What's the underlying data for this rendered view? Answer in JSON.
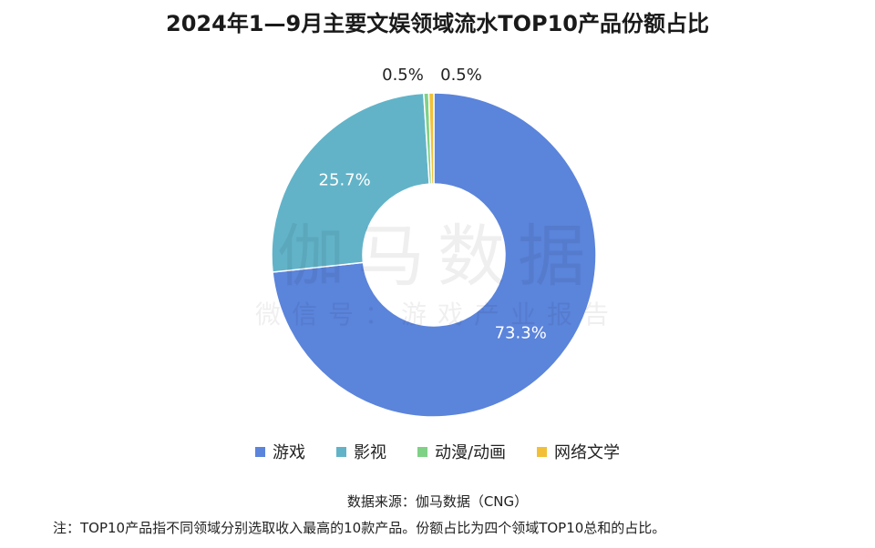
{
  "title": "2024年1—9月主要文娱领域流水TOP10产品份额占比",
  "watermark": {
    "main": "伽马数据",
    "sub": "微信号：游戏产业报告"
  },
  "chart_data": {
    "type": "pie",
    "variant": "donut",
    "categories": [
      "游戏",
      "影视",
      "动漫/动画",
      "网络文学"
    ],
    "values": [
      73.3,
      25.7,
      0.5,
      0.5
    ],
    "value_labels": [
      "73.3%",
      "25.7%",
      "0.5%",
      "0.5%"
    ],
    "colors": [
      "#5b84db",
      "#62b3c8",
      "#7fd186",
      "#f2c038"
    ],
    "legend_position": "bottom",
    "title": "2024年1—9月主要文娱领域流水TOP10产品份额占比"
  },
  "source": "数据来源：伽马数据（CNG）",
  "note": "注：TOP10产品指不同领域分别选取收入最高的10款产品。份额占比为四个领域TOP10总和的占比。"
}
